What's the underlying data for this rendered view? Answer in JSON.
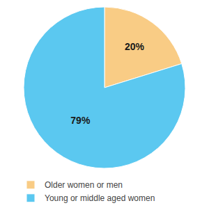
{
  "chart_data": {
    "type": "pie",
    "categories": [
      "Older women or men",
      "Young or middle aged women"
    ],
    "values": [
      20,
      79
    ],
    "value_labels": [
      "20%",
      "79%"
    ],
    "data_labels": true,
    "colors": [
      "#f9cc85",
      "#5bc8f0"
    ],
    "legend": "bottom"
  }
}
